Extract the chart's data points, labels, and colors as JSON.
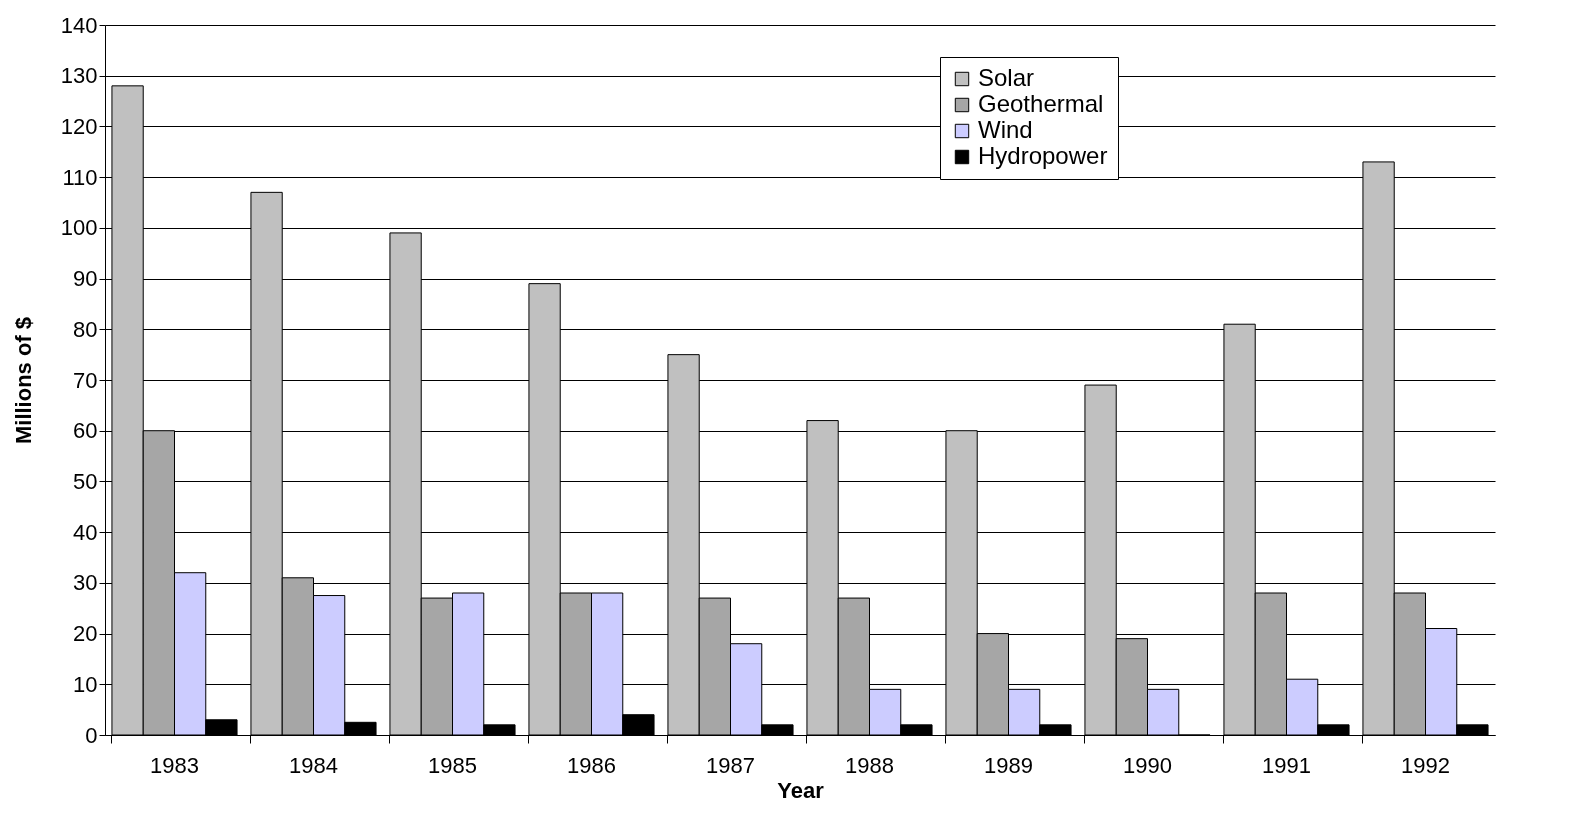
{
  "chart_data": {
    "type": "bar",
    "xlabel": "Year",
    "ylabel": "Millions of $",
    "categories": [
      "1983",
      "1984",
      "1985",
      "1986",
      "1987",
      "1988",
      "1989",
      "1990",
      "1991",
      "1992"
    ],
    "series": [
      {
        "name": "Solar",
        "color": "#c0c0c0",
        "values": [
          128,
          107,
          99,
          89,
          75,
          62,
          60,
          69,
          81,
          113
        ]
      },
      {
        "name": "Geothermal",
        "color": "#a6a6a6",
        "values": [
          60,
          31,
          27,
          28,
          27,
          27,
          20,
          19,
          28,
          28
        ]
      },
      {
        "name": "Wind",
        "color": "#ccccff",
        "values": [
          32,
          27.5,
          28,
          28,
          18,
          9,
          9,
          9,
          11,
          21
        ]
      },
      {
        "name": "Hydropower",
        "color": "#000000",
        "values": [
          3,
          2.5,
          2,
          4,
          2,
          2,
          2,
          0,
          2,
          2
        ]
      }
    ],
    "ylim": [
      0,
      140
    ],
    "yticks": [
      0,
      10,
      20,
      30,
      40,
      50,
      60,
      70,
      80,
      90,
      100,
      110,
      120,
      130,
      140
    ],
    "grid": "y",
    "legend": "top right"
  }
}
